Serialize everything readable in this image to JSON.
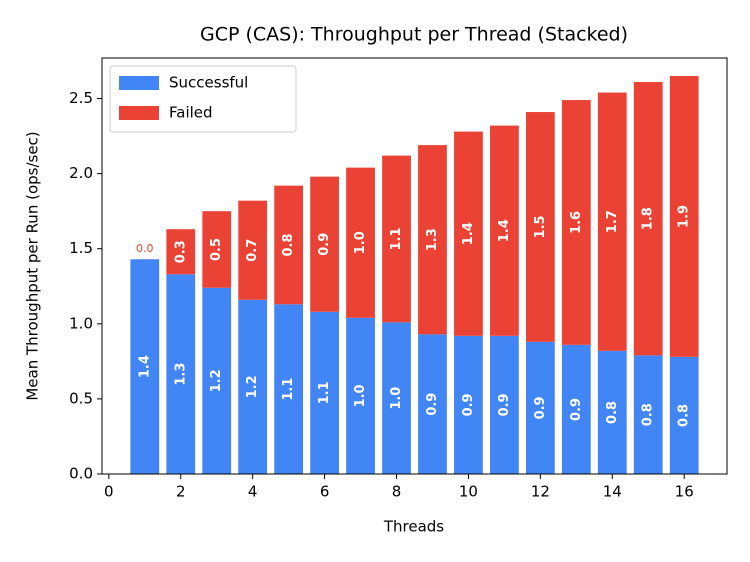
{
  "chart_data": {
    "type": "stacked_bar",
    "title": "GCP (CAS): Throughput per Thread (Stacked)",
    "x_label": "Threads",
    "y_label": "Mean Throughput per Run (ops/sec)",
    "x": [
      1,
      2,
      3,
      4,
      5,
      6,
      7,
      8,
      9,
      10,
      11,
      12,
      13,
      14,
      15,
      16
    ],
    "series": [
      {
        "name": "Successful",
        "color": "#4285f4",
        "values": [
          1.43,
          1.33,
          1.24,
          1.16,
          1.13,
          1.08,
          1.04,
          1.01,
          0.93,
          0.92,
          0.92,
          0.88,
          0.86,
          0.82,
          0.79,
          0.78
        ],
        "value_labels": [
          "1.4",
          "1.3",
          "1.2",
          "1.2",
          "1.1",
          "1.1",
          "1.0",
          "1.0",
          "0.9",
          "0.9",
          "0.9",
          "0.9",
          "0.9",
          "0.8",
          "0.8",
          "0.8"
        ]
      },
      {
        "name": "Failed",
        "color": "#ea4335",
        "values": [
          0,
          0.3,
          0.51,
          0.66,
          0.79,
          0.9,
          1.0,
          1.11,
          1.26,
          1.36,
          1.4,
          1.53,
          1.63,
          1.72,
          1.82,
          1.87
        ],
        "value_labels": [
          "0.0",
          "0.3",
          "0.5",
          "0.7",
          "0.8",
          "0.9",
          "1.0",
          "1.1",
          "1.3",
          "1.4",
          "1.4",
          "1.5",
          "1.6",
          "1.7",
          "1.8",
          "1.9"
        ]
      }
    ],
    "xlim": [
      -0.19,
      17.19
    ],
    "xticks": [
      0,
      2,
      4,
      6,
      8,
      10,
      12,
      14,
      16
    ],
    "ylim": [
      0,
      2.77
    ],
    "yticks": [
      {
        "value": 0,
        "label": "0.0"
      },
      {
        "value": 0.5,
        "label": "0.5"
      },
      {
        "value": 1,
        "label": "1.0"
      },
      {
        "value": 1.5,
        "label": "1.5"
      },
      {
        "value": 2,
        "label": "2.0"
      },
      {
        "value": 2.5,
        "label": "2.5"
      }
    ],
    "bar_width": 0.8,
    "legend": "upper left"
  }
}
